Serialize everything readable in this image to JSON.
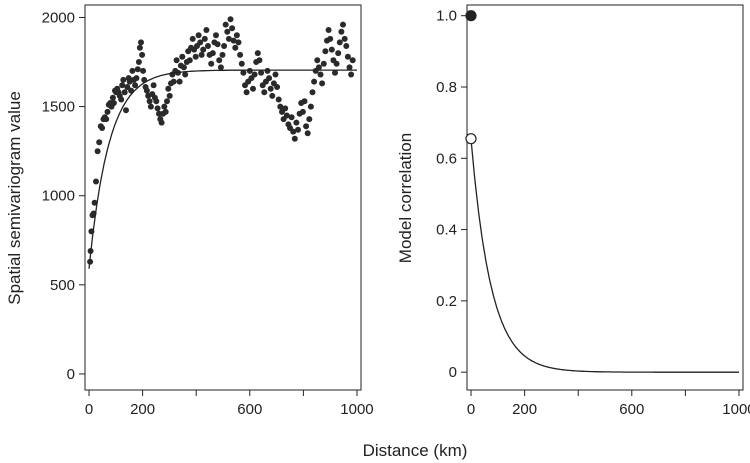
{
  "figure": {
    "xlabel": "Distance (km)"
  },
  "chart_data": [
    {
      "type": "scatter",
      "title": "",
      "xlabel": "",
      "ylabel": "Spatial semivariogram value",
      "xlim": [
        -15,
        1015
      ],
      "ylim": [
        -90,
        2070
      ],
      "xticks": [
        0,
        200,
        600,
        1000
      ],
      "xticks_minor": [
        400,
        800
      ],
      "yticks": [
        0,
        500,
        1000,
        1500,
        2000
      ],
      "grid": false,
      "legend": "none",
      "model_curve": {
        "nugget": 590,
        "sill": 1705,
        "range_scale": 75
      },
      "points": [
        [
          4,
          630
        ],
        [
          6,
          690
        ],
        [
          9,
          800
        ],
        [
          13,
          890
        ],
        [
          17,
          900
        ],
        [
          21,
          960
        ],
        [
          26,
          1080
        ],
        [
          32,
          1250
        ],
        [
          38,
          1300
        ],
        [
          44,
          1390
        ],
        [
          49,
          1380
        ],
        [
          54,
          1430
        ],
        [
          59,
          1440
        ],
        [
          64,
          1430
        ],
        [
          69,
          1470
        ],
        [
          74,
          1510
        ],
        [
          79,
          1520
        ],
        [
          84,
          1500
        ],
        [
          89,
          1550
        ],
        [
          93,
          1520
        ],
        [
          97,
          1590
        ],
        [
          101,
          1580
        ],
        [
          105,
          1600
        ],
        [
          110,
          1580
        ],
        [
          115,
          1560
        ],
        [
          120,
          1540
        ],
        [
          124,
          1620
        ],
        [
          128,
          1650
        ],
        [
          133,
          1580
        ],
        [
          138,
          1480
        ],
        [
          143,
          1610
        ],
        [
          148,
          1660
        ],
        [
          152,
          1640
        ],
        [
          157,
          1590
        ],
        [
          162,
          1700
        ],
        [
          167,
          1650
        ],
        [
          172,
          1620
        ],
        [
          177,
          1660
        ],
        [
          182,
          1710
        ],
        [
          186,
          1750
        ],
        [
          190,
          1830
        ],
        [
          194,
          1860
        ],
        [
          198,
          1790
        ],
        [
          202,
          1700
        ],
        [
          206,
          1650
        ],
        [
          211,
          1610
        ],
        [
          216,
          1590
        ],
        [
          221,
          1560
        ],
        [
          226,
          1530
        ],
        [
          231,
          1500
        ],
        [
          236,
          1570
        ],
        [
          241,
          1620
        ],
        [
          246,
          1550
        ],
        [
          251,
          1530
        ],
        [
          256,
          1490
        ],
        [
          261,
          1460
        ],
        [
          266,
          1430
        ],
        [
          271,
          1410
        ],
        [
          276,
          1460
        ],
        [
          281,
          1500
        ],
        [
          286,
          1470
        ],
        [
          291,
          1530
        ],
        [
          296,
          1600
        ],
        [
          301,
          1560
        ],
        [
          306,
          1630
        ],
        [
          311,
          1680
        ],
        [
          316,
          1640
        ],
        [
          322,
          1700
        ],
        [
          327,
          1760
        ],
        [
          332,
          1690
        ],
        [
          338,
          1640
        ],
        [
          343,
          1730
        ],
        [
          348,
          1780
        ],
        [
          354,
          1720
        ],
        [
          359,
          1680
        ],
        [
          365,
          1750
        ],
        [
          370,
          1810
        ],
        [
          376,
          1760
        ],
        [
          381,
          1830
        ],
        [
          387,
          1880
        ],
        [
          392,
          1820
        ],
        [
          398,
          1780
        ],
        [
          403,
          1840
        ],
        [
          409,
          1900
        ],
        [
          415,
          1860
        ],
        [
          420,
          1790
        ],
        [
          426,
          1820
        ],
        [
          432,
          1880
        ],
        [
          438,
          1930
        ],
        [
          444,
          1840
        ],
        [
          450,
          1790
        ],
        [
          456,
          1740
        ],
        [
          462,
          1800
        ],
        [
          468,
          1860
        ],
        [
          474,
          1900
        ],
        [
          480,
          1850
        ],
        [
          486,
          1760
        ],
        [
          492,
          1720
        ],
        [
          498,
          1790
        ],
        [
          504,
          1840
        ],
        [
          510,
          1960
        ],
        [
          516,
          1920
        ],
        [
          522,
          1880
        ],
        [
          528,
          1990
        ],
        [
          534,
          1940
        ],
        [
          540,
          1870
        ],
        [
          546,
          1830
        ],
        [
          552,
          1900
        ],
        [
          558,
          1860
        ],
        [
          564,
          1790
        ],
        [
          570,
          1740
        ],
        [
          576,
          1690
        ],
        [
          582,
          1620
        ],
        [
          588,
          1580
        ],
        [
          594,
          1640
        ],
        [
          600,
          1700
        ],
        [
          606,
          1660
        ],
        [
          612,
          1600
        ],
        [
          618,
          1680
        ],
        [
          624,
          1750
        ],
        [
          630,
          1800
        ],
        [
          636,
          1760
        ],
        [
          642,
          1690
        ],
        [
          648,
          1620
        ],
        [
          654,
          1580
        ],
        [
          660,
          1640
        ],
        [
          666,
          1700
        ],
        [
          672,
          1660
        ],
        [
          678,
          1600
        ],
        [
          684,
          1560
        ],
        [
          690,
          1630
        ],
        [
          696,
          1680
        ],
        [
          702,
          1610
        ],
        [
          708,
          1540
        ],
        [
          714,
          1500
        ],
        [
          720,
          1470
        ],
        [
          726,
          1430
        ],
        [
          732,
          1490
        ],
        [
          738,
          1450
        ],
        [
          744,
          1400
        ],
        [
          750,
          1380
        ],
        [
          756,
          1440
        ],
        [
          762,
          1360
        ],
        [
          768,
          1320
        ],
        [
          774,
          1410
        ],
        [
          780,
          1370
        ],
        [
          786,
          1460
        ],
        [
          792,
          1520
        ],
        [
          798,
          1470
        ],
        [
          804,
          1530
        ],
        [
          810,
          1390
        ],
        [
          816,
          1350
        ],
        [
          822,
          1430
        ],
        [
          828,
          1500
        ],
        [
          834,
          1580
        ],
        [
          840,
          1640
        ],
        [
          846,
          1700
        ],
        [
          852,
          1760
        ],
        [
          858,
          1720
        ],
        [
          864,
          1680
        ],
        [
          870,
          1630
        ],
        [
          876,
          1740
        ],
        [
          882,
          1810
        ],
        [
          888,
          1870
        ],
        [
          894,
          1930
        ],
        [
          900,
          1880
        ],
        [
          906,
          1820
        ],
        [
          912,
          1760
        ],
        [
          918,
          1690
        ],
        [
          924,
          1740
        ],
        [
          930,
          1800
        ],
        [
          936,
          1860
        ],
        [
          942,
          1920
        ],
        [
          948,
          1960
        ],
        [
          954,
          1880
        ],
        [
          960,
          1840
        ],
        [
          966,
          1780
        ],
        [
          972,
          1720
        ],
        [
          978,
          1680
        ],
        [
          984,
          1760
        ]
      ]
    },
    {
      "type": "line",
      "title": "",
      "xlabel": "",
      "ylabel": "Model correlation",
      "xlim": [
        -15,
        1015
      ],
      "ylim": [
        -0.05,
        1.03
      ],
      "xticks": [
        0,
        200,
        600,
        1000
      ],
      "xticks_minor": [
        400,
        800
      ],
      "yticks": [
        0,
        0.2,
        0.4,
        0.6,
        0.8,
        1.0
      ],
      "ytick_labels": [
        "0",
        "0.2",
        "0.4",
        "0.6",
        "0.8",
        "1.0"
      ],
      "grid": false,
      "legend": "none",
      "curve": {
        "start": 0.655,
        "decay_scale": 75
      },
      "markers": [
        {
          "x": 0,
          "y": 1.0,
          "style": "filled"
        },
        {
          "x": 0,
          "y": 0.655,
          "style": "open"
        }
      ]
    }
  ]
}
